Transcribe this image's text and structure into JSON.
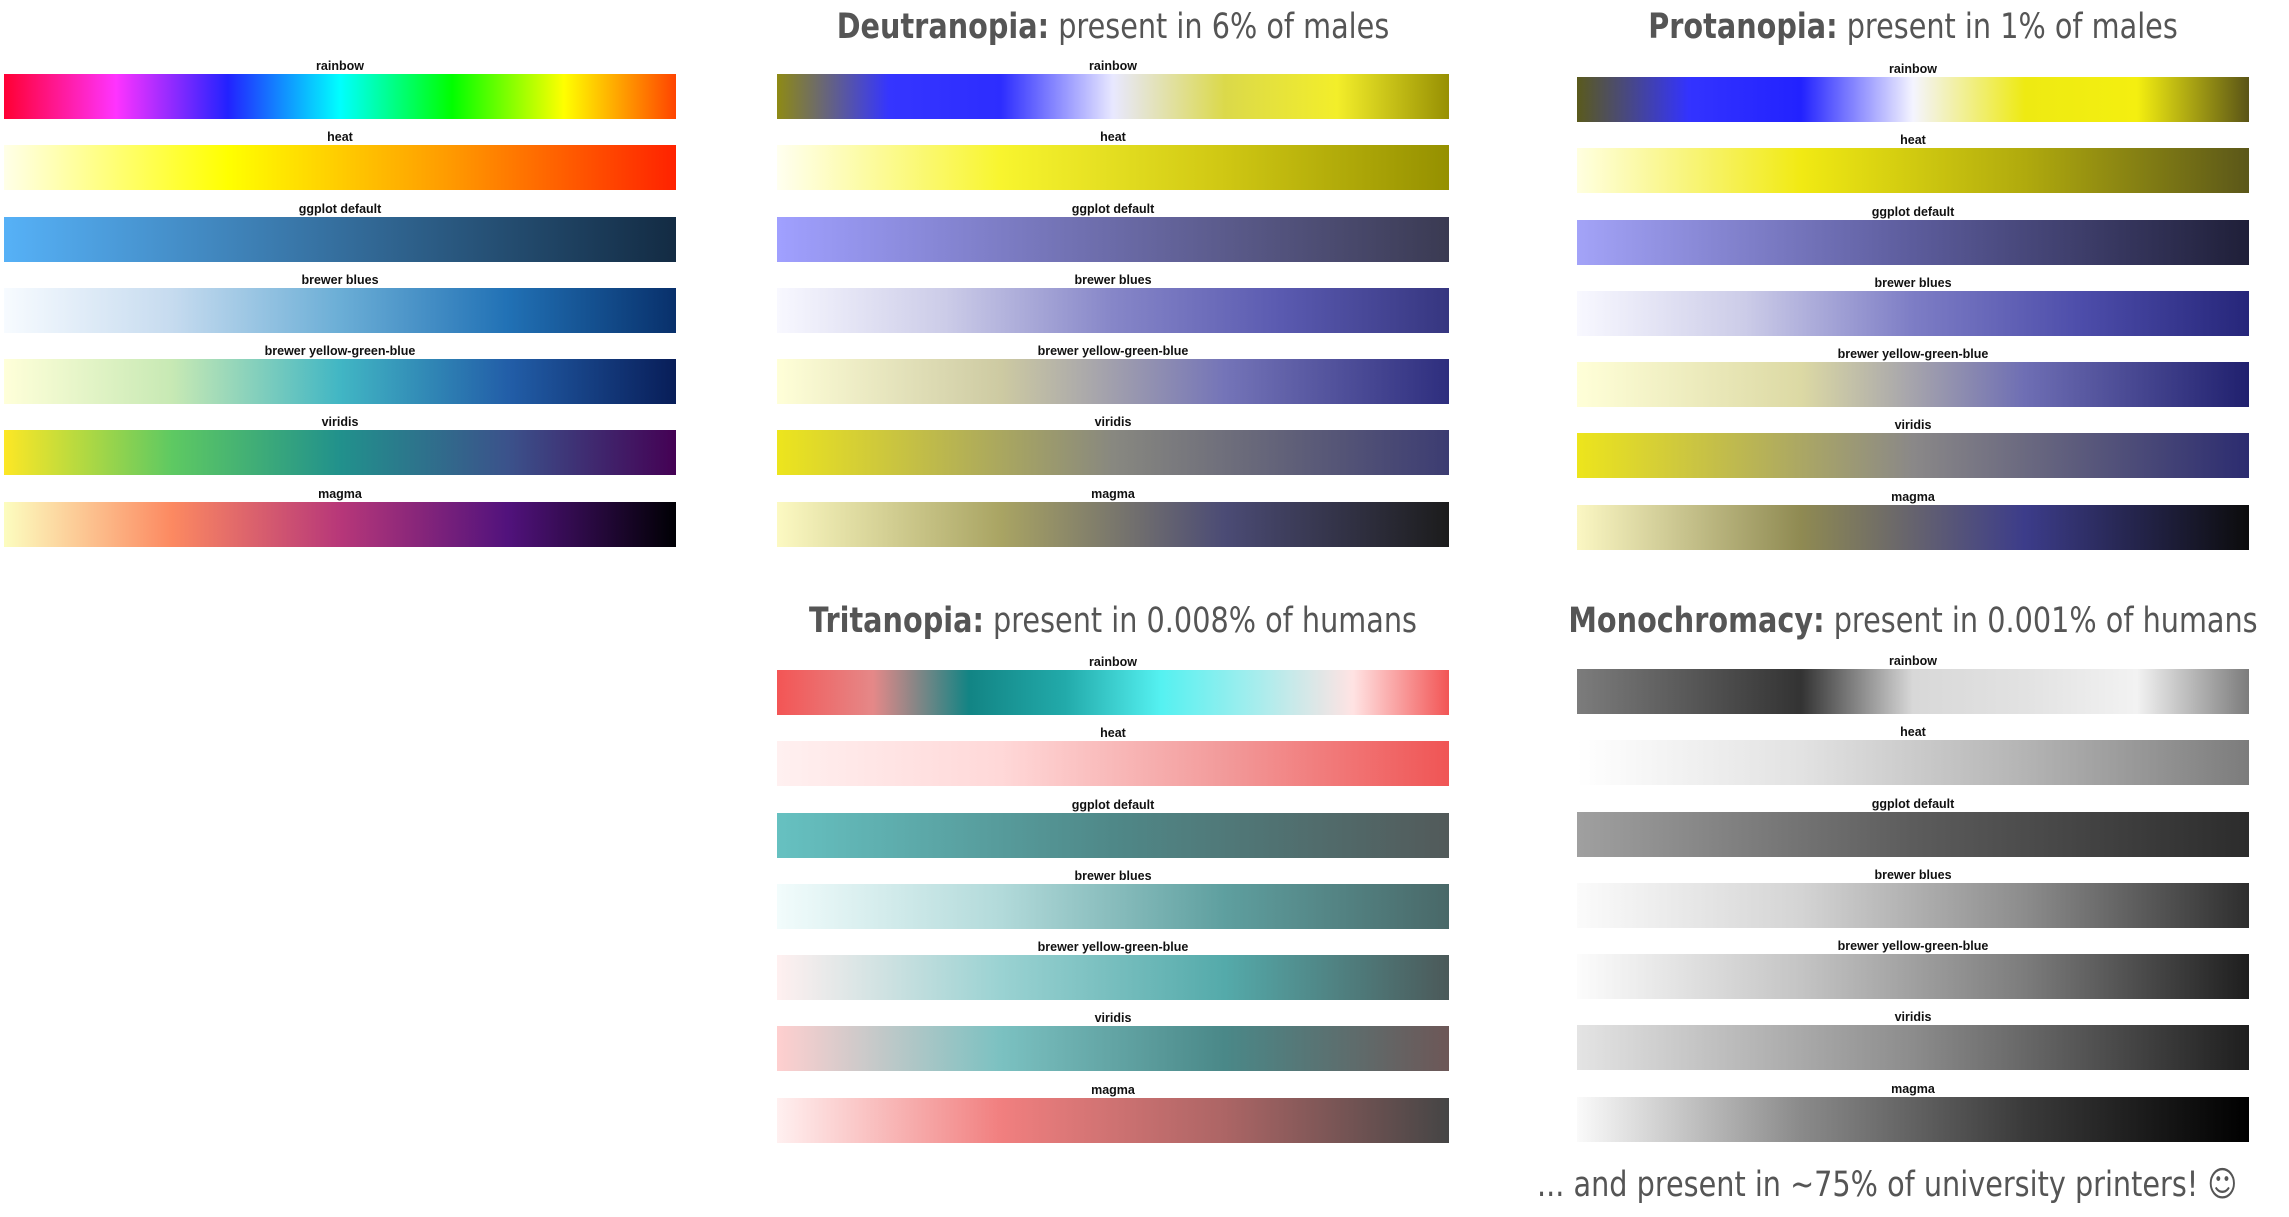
{
  "palette_labels": [
    "rainbow",
    "heat",
    "ggplot default",
    "brewer blues",
    "brewer yellow-green-blue",
    "viridis",
    "magma"
  ],
  "panels": [
    {
      "id": "normal",
      "title_bold": "",
      "title_rest": "",
      "gradients": [
        [
          "#ff0033",
          "#ff33ff",
          "#2222ff",
          "#00ffff",
          "#00ff00",
          "#ffff00",
          "#ff4400"
        ],
        [
          "#ffffe8",
          "#ffff00",
          "#ff9900",
          "#ff2200"
        ],
        [
          "#56b1f7",
          "#132b43"
        ],
        [
          "#f7fbff",
          "#c6dbef",
          "#6baed6",
          "#2171b5",
          "#08306b"
        ],
        [
          "#ffffd9",
          "#c7e9b4",
          "#41b6c4",
          "#225ea8",
          "#081d58"
        ],
        [
          "#fde725",
          "#5ec962",
          "#21918c",
          "#3b528b",
          "#440154"
        ],
        [
          "#fcfdbf",
          "#fc8961",
          "#b73779",
          "#51127c",
          "#000004"
        ]
      ]
    },
    {
      "id": "deut",
      "title_bold": "Deutranopia:",
      "title_rest": " present in 6% of males",
      "gradients": [
        [
          "#8e8a14",
          "#3535ff",
          "#2d2dff",
          "#e8e8ff",
          "#dbd94a",
          "#f3ee2a",
          "#979003"
        ],
        [
          "#fffff0",
          "#f8f52e",
          "#cfc713",
          "#959000"
        ],
        [
          "#a0a0ff",
          "#6b6ba8",
          "#3a3a52"
        ],
        [
          "#f8f8ff",
          "#cccce8",
          "#8686c8",
          "#5a5ab0",
          "#363680"
        ],
        [
          "#ffffd8",
          "#cdcaa2",
          "#7474b8",
          "#2e2e7e"
        ],
        [
          "#ede51d",
          "#888880",
          "#3c3c72"
        ],
        [
          "#fcf9c2",
          "#a9a463",
          "#4b4b75",
          "#1c1c1c"
        ]
      ]
    },
    {
      "id": "prot",
      "title_bold": "Protanopia:",
      "title_rest": " present in 1% of males",
      "gradients": [
        [
          "#5a5a1c",
          "#3333ff",
          "#2222ff",
          "#f4f4ff",
          "#eeea12",
          "#f4ef10",
          "#5a5416"
        ],
        [
          "#ffffe0",
          "#f1ea13",
          "#b0aa0d",
          "#5b5719"
        ],
        [
          "#a3a3f8",
          "#5c5c9c",
          "#1f1f38"
        ],
        [
          "#f8f8ff",
          "#cccce8",
          "#7d7dc5",
          "#4d4daa",
          "#26267a"
        ],
        [
          "#ffffd8",
          "#dcd9a4",
          "#6e6eb4",
          "#20206e"
        ],
        [
          "#ede51c",
          "#8a8888",
          "#2c2c70"
        ],
        [
          "#fbf7c3",
          "#8f8a52",
          "#3c3c8a",
          "#0c0c0c"
        ]
      ]
    },
    {
      "id": "trit",
      "title_bold": "Tritanopia:",
      "title_rest": " present in 0.008% of humans",
      "gradients": [
        [
          "#f35555",
          "#e58888",
          "#128484",
          "#22aaaa",
          "#55f1f1",
          "#a7eded",
          "#ffe3e3",
          "#f25555"
        ],
        [
          "#fff0f0",
          "#ffd8d8",
          "#f29a9a",
          "#f05555"
        ],
        [
          "#66c1c1",
          "#4f8888",
          "#525a5a"
        ],
        [
          "#f2fcfc",
          "#b2dada",
          "#5e9f9f",
          "#496868"
        ],
        [
          "#fff0f0",
          "#9ad2d2",
          "#54aaaa",
          "#4b5959"
        ],
        [
          "#ffcfcf",
          "#7bc1c1",
          "#4a8888",
          "#6d5757"
        ],
        [
          "#fff0f0",
          "#f17f7f",
          "#ac6565",
          "#454545"
        ]
      ]
    },
    {
      "id": "mono",
      "title_bold": "Monochromacy:",
      "title_rest": " present in 0.001% of humans",
      "gradients": [
        [
          "#7c7c7c",
          "#585858",
          "#333333",
          "#d8d8d8",
          "#e2e2e2",
          "#f2f2f2",
          "#7c7c7c"
        ],
        [
          "#ffffff",
          "#e2e2e2",
          "#b4b4b4",
          "#7c7c7c"
        ],
        [
          "#a0a0a0",
          "#5c5c5c",
          "#2c2c2c"
        ],
        [
          "#fbfbfb",
          "#d4d4d4",
          "#8c8c8c",
          "#2e2e2e"
        ],
        [
          "#fcfcfc",
          "#c4c4c4",
          "#7c7c7c",
          "#1e1e1e"
        ],
        [
          "#e4e4e4",
          "#8c8c8c",
          "#1e1e1e"
        ],
        [
          "#fafafa",
          "#8a8a8a",
          "#3a3a3a",
          "#000000"
        ]
      ]
    }
  ],
  "footnote": "... and present in ~75% of university printers! ☺"
}
